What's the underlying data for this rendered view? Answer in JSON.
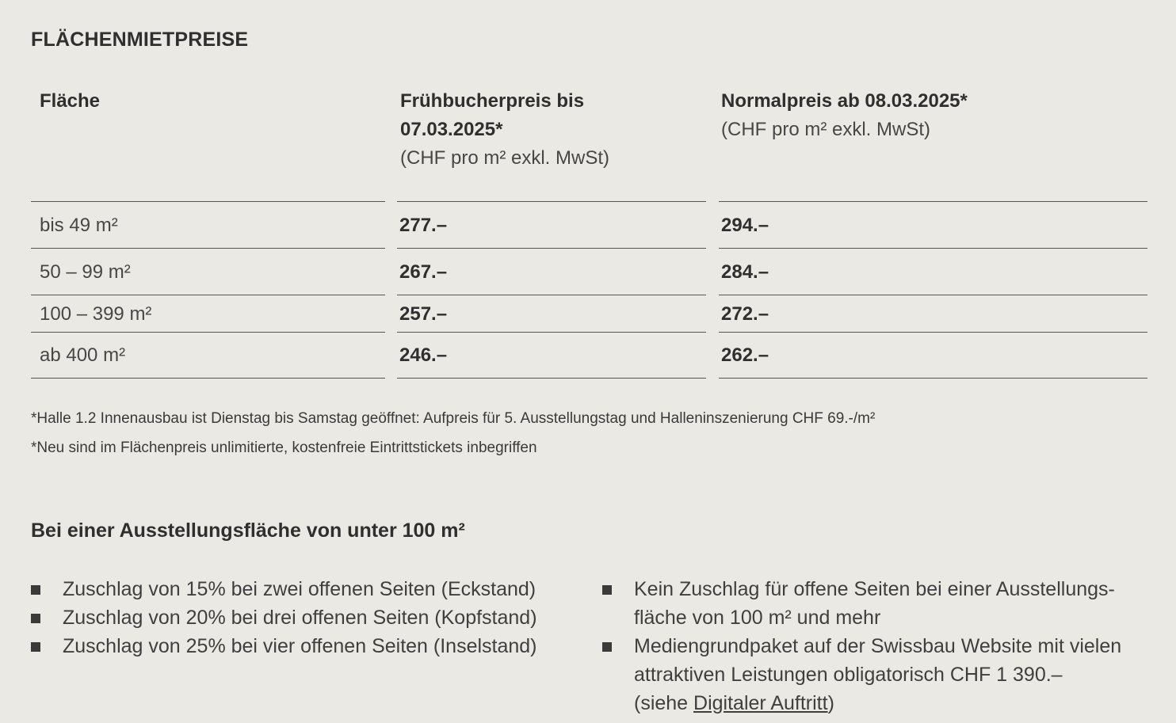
{
  "section_title": "FLÄCHENMIETPREISE",
  "table": {
    "headers": [
      {
        "title": "Fläche",
        "title2": "",
        "sub": ""
      },
      {
        "title": "Frühbucherpreis bis",
        "title2": "07.03.2025*",
        "sub": "(CHF pro m² exkl. MwSt)"
      },
      {
        "title": "Normalpreis ab 08.03.2025*",
        "title2": "",
        "sub": "(CHF pro m² exkl. MwSt)"
      }
    ],
    "rows": [
      {
        "area": "bis 49 m²",
        "early": "277.–",
        "normal": "294.–"
      },
      {
        "area": "50 – 99 m²",
        "early": "267.–",
        "normal": "284.–"
      },
      {
        "area": "100 – 399 m²",
        "early": "257.–",
        "normal": "272.–"
      },
      {
        "area": "ab 400 m²",
        "early": "246.–",
        "normal": "262.–"
      }
    ]
  },
  "footnotes": [
    "*Halle 1.2 Innenausbau ist Dienstag bis Samstag geöffnet: Aufpreis für 5. Ausstellungstag und Halleninszenierung CHF 69.-/m²",
    "*Neu sind im Flächenpreis unlimitierte, kostenfreie Eintrittstickets inbegriffen"
  ],
  "subsection_title": "Bei einer Ausstellungsfläche von unter 100 m²",
  "left_bullets": [
    "Zuschlag von 15% bei zwei offenen Seiten (Eckstand)",
    "Zuschlag von 20% bei drei offenen Seiten (Kopfstand)",
    "Zuschlag von 25% bei vier offenen Seiten (Inselstand)"
  ],
  "right_bullets": {
    "item1_line1": "Kein Zuschlag für offene Seiten bei einer Ausstellungs-",
    "item1_line2": "fläche von 100 m² und mehr",
    "item2_line1": "Mediengrundpaket auf der Swissbau Website mit vielen",
    "item2_line2": "attraktiven Leistungen obligatorisch CHF 1 390.–",
    "item2_line3_prefix": "(siehe ",
    "item2_link": "Digitaler Auftritt",
    "item2_line3_suffix": ")"
  }
}
